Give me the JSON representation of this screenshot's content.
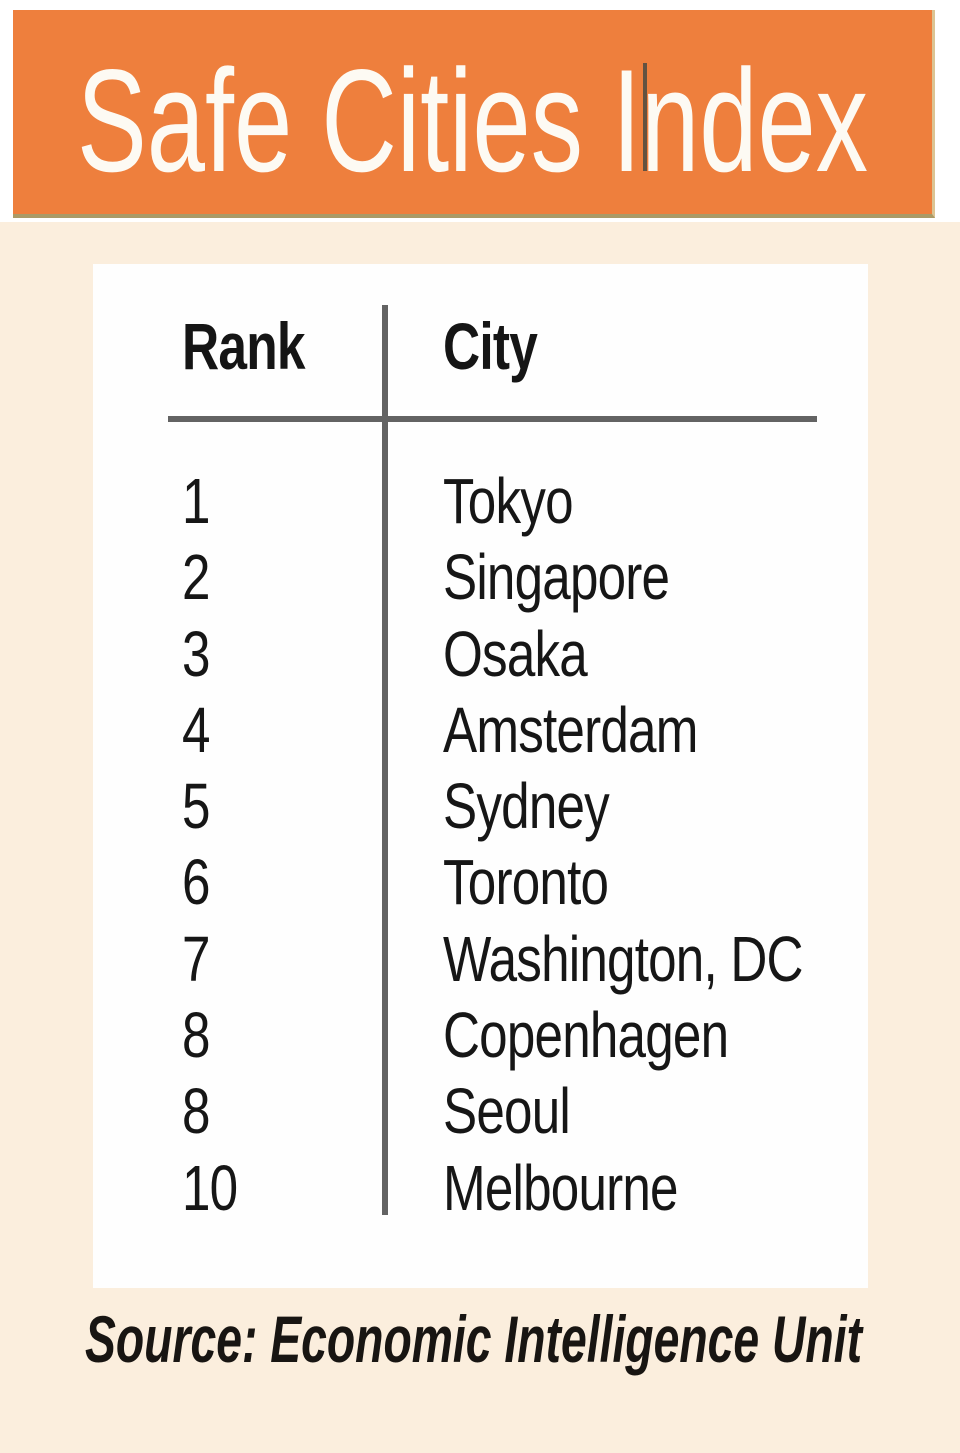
{
  "title": "Safe Cities Index",
  "table": {
    "headers": {
      "rank": "Rank",
      "city": "City"
    },
    "rows": [
      {
        "rank": "1",
        "city": "Tokyo"
      },
      {
        "rank": "2",
        "city": "Singapore"
      },
      {
        "rank": "3",
        "city": "Osaka"
      },
      {
        "rank": "4",
        "city": "Amsterdam"
      },
      {
        "rank": "5",
        "city": "Sydney"
      },
      {
        "rank": "6",
        "city": "Toronto"
      },
      {
        "rank": "7",
        "city": "Washington, DC"
      },
      {
        "rank": "8",
        "city": "Copenhagen"
      },
      {
        "rank": "8",
        "city": "Seoul"
      },
      {
        "rank": "10",
        "city": "Melbourne"
      }
    ]
  },
  "source": "Source: Economic Intelligence Unit",
  "colors": {
    "banner_orange": "#ee7f3d",
    "background_cream": "#fbeedd",
    "card_white": "#fefefe",
    "rule_gray": "#636363",
    "text_black": "#161616",
    "title_white": "#fdfaf3"
  },
  "chart_data": {
    "type": "table",
    "title": "Safe Cities Index",
    "columns": [
      "Rank",
      "City"
    ],
    "rows": [
      [
        1,
        "Tokyo"
      ],
      [
        2,
        "Singapore"
      ],
      [
        3,
        "Osaka"
      ],
      [
        4,
        "Amsterdam"
      ],
      [
        5,
        "Sydney"
      ],
      [
        6,
        "Toronto"
      ],
      [
        7,
        "Washington, DC"
      ],
      [
        8,
        "Copenhagen"
      ],
      [
        8,
        "Seoul"
      ],
      [
        10,
        "Melbourne"
      ]
    ],
    "source": "Source: Economic Intelligence Unit",
    "layout": "single two-column ranking table, vertical and horizontal gray rules, orange header banner"
  }
}
